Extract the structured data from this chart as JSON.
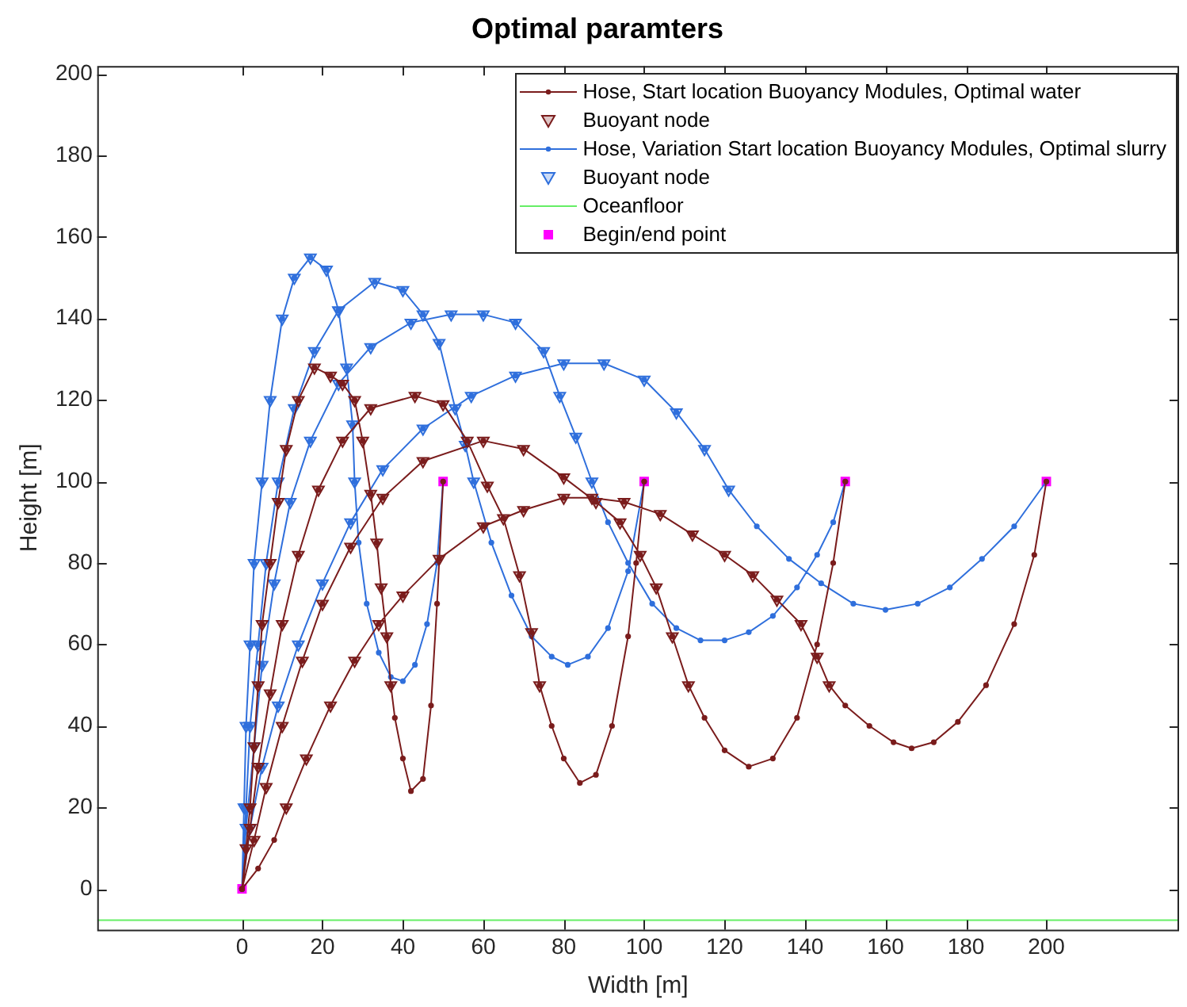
{
  "chart_data": {
    "type": "line",
    "title": "Optimal paramters",
    "xlabel": "Width [m]",
    "ylabel": "Height [m]",
    "xlim": [
      -36,
      233
    ],
    "ylim": [
      -10,
      202
    ],
    "xticks": [
      0,
      20,
      40,
      60,
      80,
      100,
      120,
      140,
      160,
      180,
      200
    ],
    "yticks": [
      0,
      20,
      40,
      60,
      80,
      100,
      120,
      140,
      160,
      180,
      200
    ],
    "grid": false,
    "legend": "top right",
    "series": [
      {
        "name": "Hose, Start location Buoyancy Modules, Optimal water",
        "marker": "circle",
        "line_style": "solid",
        "color": "#7a1c1c",
        "x": [
          0,
          1,
          2,
          3,
          4,
          5,
          7,
          9,
          11,
          14,
          18,
          22,
          25,
          28,
          30,
          32,
          33.5,
          34.6,
          36,
          37,
          38,
          40,
          42,
          45,
          47,
          48.5,
          50,
          null,
          0,
          2,
          4,
          7,
          10,
          14,
          19,
          25,
          32,
          43,
          50,
          56,
          61,
          65,
          69,
          72,
          74,
          77,
          80,
          84,
          88,
          92,
          96,
          98,
          100,
          null,
          0,
          3,
          6,
          10,
          15,
          20,
          27,
          35,
          45,
          60,
          70,
          80,
          88,
          94,
          99,
          103,
          107,
          111,
          115,
          120,
          126,
          132,
          138,
          143,
          147,
          150,
          null,
          0,
          4,
          8,
          11,
          16,
          22,
          28,
          34,
          40,
          49,
          60,
          70,
          80,
          87,
          95,
          104,
          112,
          120,
          127,
          133,
          139,
          143,
          146,
          150,
          156,
          162,
          166.5,
          172,
          178,
          185,
          192,
          197,
          200
        ],
        "values": [
          0,
          10,
          20,
          35,
          50,
          65,
          80,
          95,
          108,
          120,
          128,
          126,
          124,
          120,
          110,
          97,
          85,
          74,
          62,
          50,
          42,
          32,
          24,
          27,
          45,
          70,
          100,
          null,
          0,
          15,
          30,
          48,
          65,
          82,
          98,
          110,
          118,
          121,
          119,
          110,
          99,
          91,
          77,
          63,
          50,
          40,
          32,
          26,
          28,
          40,
          62,
          80,
          100,
          null,
          0,
          12,
          25,
          40,
          56,
          70,
          84,
          96,
          105,
          110,
          108,
          101,
          95,
          90,
          82,
          74,
          62,
          50,
          42,
          34,
          30,
          32,
          42,
          60,
          80,
          100,
          null,
          0,
          5,
          12,
          20,
          32,
          45,
          56,
          65,
          72,
          81,
          89,
          93,
          96,
          96,
          95,
          92,
          87,
          82,
          77,
          71,
          65,
          57,
          50,
          45,
          40,
          36,
          34.5,
          36,
          41,
          50,
          65,
          82,
          100
        ]
      },
      {
        "name": "Buoyant node",
        "type": "scatter",
        "marker": "triangle",
        "color": "#7a1c1c",
        "x": [
          1,
          2,
          3,
          4,
          5,
          7,
          9,
          11,
          14,
          18,
          22,
          25,
          28,
          30,
          32,
          33.5,
          34.6,
          36,
          37,
          2,
          4,
          7,
          10,
          14,
          19,
          25,
          32,
          43,
          50,
          56,
          61,
          65,
          69,
          72,
          74,
          3,
          6,
          10,
          15,
          20,
          27,
          35,
          45,
          60,
          70,
          80,
          88,
          94,
          99,
          103,
          107,
          111,
          11,
          16,
          22,
          28,
          34,
          40,
          49,
          60,
          70,
          80,
          87,
          95,
          104,
          112,
          120,
          127,
          133,
          139,
          143,
          146
        ],
        "values": [
          10,
          20,
          35,
          50,
          65,
          80,
          95,
          108,
          120,
          128,
          126,
          124,
          120,
          110,
          97,
          85,
          74,
          62,
          50,
          15,
          30,
          48,
          65,
          82,
          98,
          110,
          118,
          121,
          119,
          110,
          99,
          91,
          77,
          63,
          50,
          12,
          25,
          40,
          56,
          70,
          84,
          96,
          105,
          110,
          108,
          101,
          95,
          90,
          82,
          74,
          62,
          50,
          20,
          32,
          45,
          56,
          65,
          72,
          81,
          89,
          93,
          96,
          96,
          95,
          92,
          87,
          82,
          77,
          71,
          65,
          57,
          50
        ]
      },
      {
        "name": "Hose, Variation Start location Buoyancy Modules, Optimal slurry",
        "marker": "circle",
        "line_style": "solid",
        "color": "#2f6fdc",
        "x": [
          0,
          0.5,
          1,
          2,
          3,
          5,
          7,
          10,
          13,
          17,
          21,
          24,
          26,
          27.5,
          28,
          29,
          31,
          34,
          37,
          40,
          43,
          46,
          48.5,
          50,
          null,
          0,
          1,
          2,
          4,
          6,
          9,
          13,
          18,
          24,
          33,
          40,
          45,
          49,
          53,
          55.5,
          57.6,
          62,
          67,
          72,
          77,
          81,
          86,
          91,
          96,
          100,
          null,
          0,
          1,
          3,
          5,
          8,
          12,
          17,
          24,
          32,
          42,
          52,
          60,
          68,
          75,
          79,
          83,
          87,
          91,
          96,
          102,
          108,
          114,
          120,
          126,
          132,
          138,
          143,
          147,
          150,
          null,
          0,
          2,
          5,
          9,
          14,
          20,
          27,
          35,
          45,
          57,
          68,
          80,
          90,
          100,
          108,
          115,
          121,
          128,
          136,
          144,
          152,
          160,
          168,
          176,
          184,
          192,
          200
        ],
        "values": [
          0,
          20,
          40,
          60,
          80,
          100,
          120,
          140,
          150,
          155,
          152,
          142,
          128,
          114,
          100,
          85,
          70,
          58,
          52,
          51,
          55,
          65,
          80,
          100,
          null,
          0,
          20,
          40,
          60,
          80,
          100,
          118,
          132,
          142,
          149,
          147,
          141,
          134,
          118,
          109,
          100,
          85,
          72,
          62,
          57,
          55,
          57,
          64,
          78,
          100,
          null,
          0,
          15,
          35,
          55,
          75,
          95,
          110,
          124,
          133,
          139,
          141,
          141,
          139,
          132,
          121,
          111,
          100,
          90,
          80,
          70,
          64,
          61,
          61,
          63,
          67,
          74,
          82,
          90,
          100,
          null,
          0,
          15,
          30,
          45,
          60,
          75,
          90,
          103,
          113,
          121,
          126,
          129,
          129,
          125,
          117,
          108,
          98,
          89,
          81,
          75,
          70,
          68.5,
          70,
          74,
          81,
          89,
          100
        ]
      },
      {
        "name": "Buoyant node",
        "type": "scatter",
        "marker": "triangle",
        "color": "#2f6fdc",
        "x": [
          0.5,
          1,
          2,
          3,
          5,
          7,
          10,
          13,
          17,
          21,
          24,
          26,
          27.5,
          28,
          1,
          2,
          4,
          6,
          9,
          13,
          18,
          24,
          33,
          40,
          45,
          49,
          53,
          55.5,
          57.6,
          1,
          3,
          5,
          8,
          12,
          17,
          24,
          32,
          42,
          52,
          60,
          68,
          75,
          79,
          83,
          87,
          2,
          5,
          9,
          14,
          20,
          27,
          35,
          45,
          57,
          68,
          80,
          90,
          100,
          108,
          115,
          121
        ],
        "values": [
          20,
          40,
          60,
          80,
          100,
          120,
          140,
          150,
          155,
          152,
          142,
          128,
          114,
          100,
          20,
          40,
          60,
          80,
          100,
          118,
          132,
          142,
          149,
          147,
          141,
          134,
          118,
          109,
          100,
          15,
          35,
          55,
          75,
          95,
          110,
          124,
          133,
          139,
          141,
          141,
          139,
          132,
          121,
          111,
          100,
          15,
          30,
          45,
          60,
          75,
          90,
          103,
          113,
          121,
          126,
          129,
          129,
          125,
          117,
          108,
          98
        ]
      },
      {
        "name": "Oceanfloor",
        "marker": "none",
        "line_style": "solid",
        "color": "#66ee66",
        "x": [
          -36,
          233
        ],
        "values": [
          -7.7,
          -7.7
        ]
      },
      {
        "name": "Begin/end point",
        "type": "scatter",
        "marker": "square",
        "color": "#ff00ff",
        "x": [
          0,
          50,
          100,
          150,
          200
        ],
        "values": [
          0,
          100,
          100,
          100,
          100
        ]
      }
    ]
  }
}
